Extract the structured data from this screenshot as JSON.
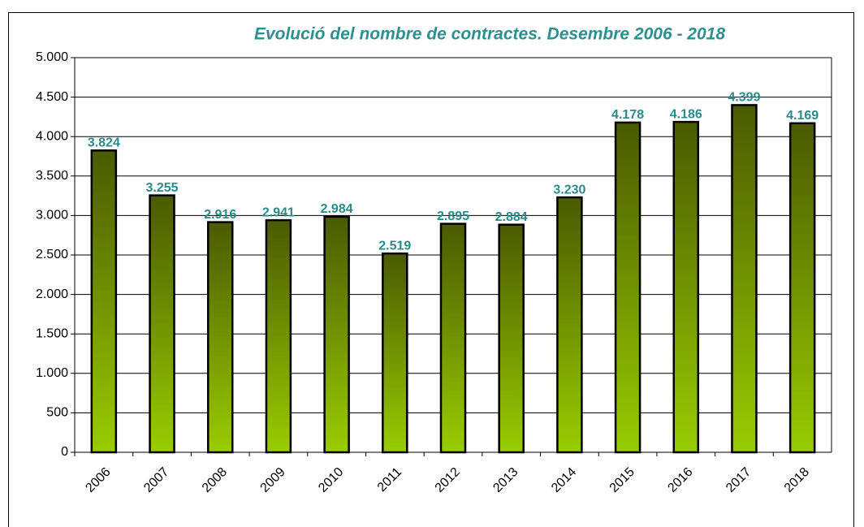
{
  "chart_data": {
    "type": "bar",
    "title": "Evolució del nombre de contractes. Desembre 2006 - 2018",
    "categories": [
      "2006",
      "2007",
      "2008",
      "2009",
      "2010",
      "2011",
      "2012",
      "2013",
      "2014",
      "2015",
      "2016",
      "2017",
      "2018"
    ],
    "values": [
      3824,
      3255,
      2916,
      2941,
      2984,
      2519,
      2895,
      2884,
      3230,
      4178,
      4186,
      4399,
      4169
    ],
    "value_labels": [
      "3.824",
      "3.255",
      "2.916",
      "2.941",
      "2.984",
      "2.519",
      "2.895",
      "2.884",
      "3.230",
      "4.178",
      "4.186",
      "4.399",
      "4.169"
    ],
    "color": "#99cc00",
    "ylim": [
      0,
      5000
    ],
    "yticks": [
      0,
      500,
      {
        "value": 1000,
        "label": "1.000"
      },
      {
        "value": 1500,
        "label": "1.500"
      },
      {
        "value": 2000,
        "label": "2.000"
      },
      {
        "value": 2500,
        "label": "2.500"
      },
      {
        "value": 3000,
        "label": "3.000"
      },
      {
        "value": 3500,
        "label": "3.500"
      },
      {
        "value": 4000,
        "label": "4.000"
      },
      {
        "value": 4500,
        "label": "4.500"
      },
      {
        "value": 5000,
        "label": "5.000"
      }
    ],
    "grid": true
  }
}
